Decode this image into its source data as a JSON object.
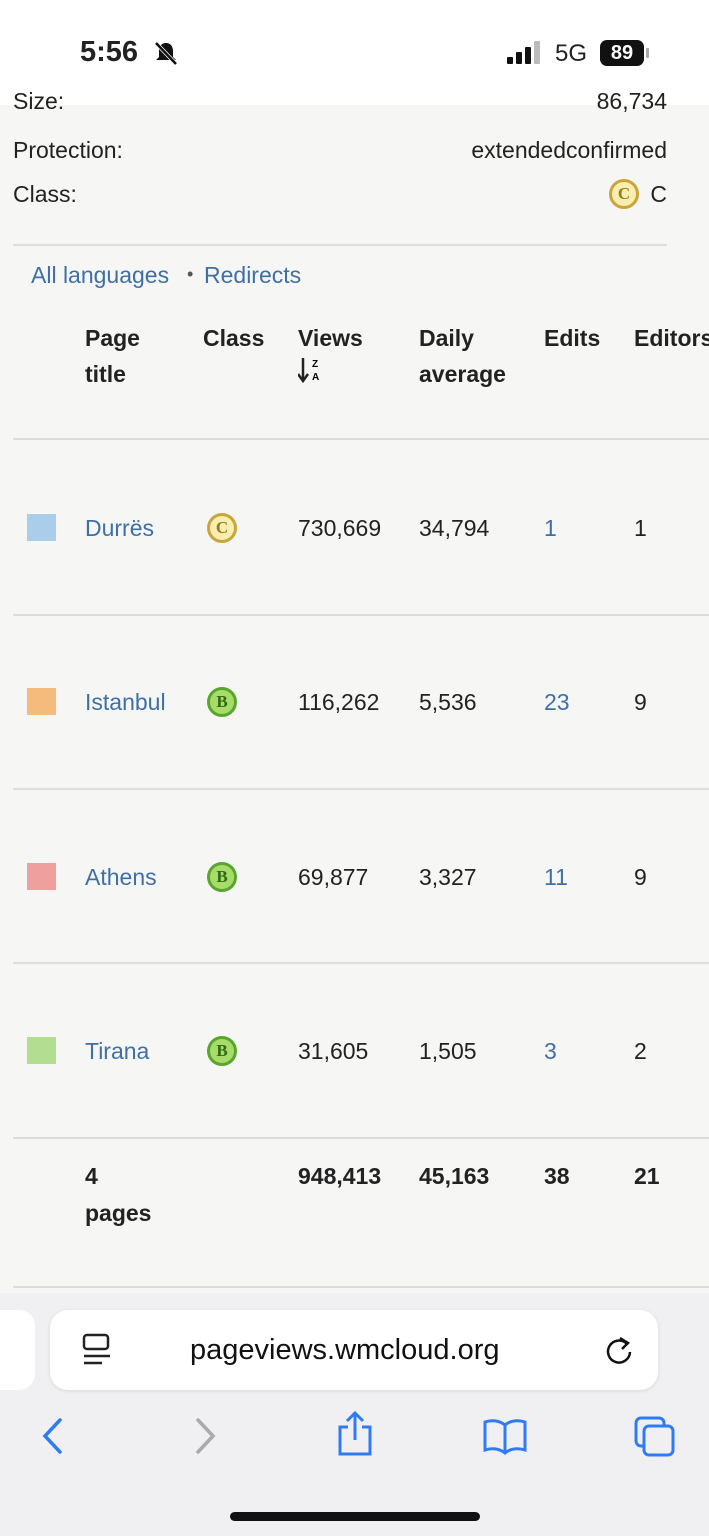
{
  "status_bar": {
    "time": "5:56",
    "network": "5G",
    "battery": "89"
  },
  "info": {
    "rows": [
      [
        "Size:",
        "86,734"
      ],
      [
        "Protection:",
        "extendedconfirmed"
      ],
      [
        "Class:",
        "C"
      ]
    ]
  },
  "links": {
    "all_languages": "All languages",
    "separator": "•",
    "redirects": "Redirects"
  },
  "table": {
    "headers": [
      "Page title",
      "Class",
      "Views",
      "Daily average",
      "Edits",
      "Editors"
    ],
    "rows": [
      [
        "Durrës",
        "C",
        "730,669",
        "34,794",
        "1",
        "1"
      ],
      [
        "Istanbul",
        "B",
        "116,262",
        "5,536",
        "23",
        "9"
      ],
      [
        "Athens",
        "B",
        "69,877",
        "3,327",
        "11",
        "9"
      ],
      [
        "Tirana",
        "B",
        "31,605",
        "1,505",
        "3",
        "2"
      ]
    ],
    "totals": [
      "4 pages",
      "",
      "948,413",
      "45,163",
      "38",
      "21"
    ]
  },
  "browser": {
    "url": "pageviews.wmcloud.org"
  }
}
